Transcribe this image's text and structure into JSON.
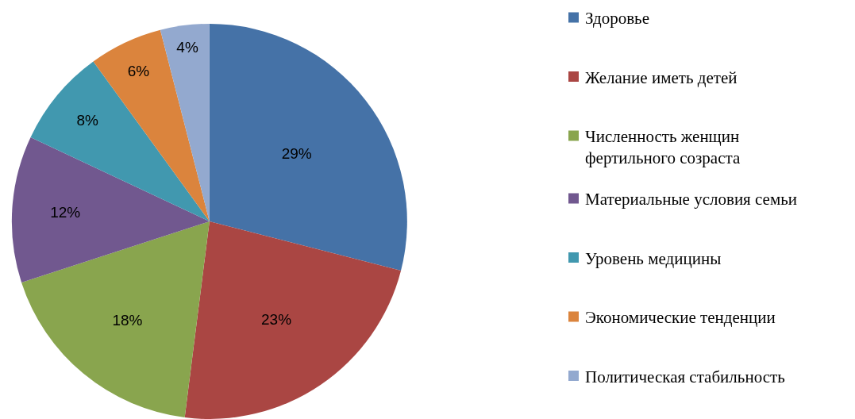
{
  "chart_data": {
    "type": "pie",
    "categories": [
      "Здоровье",
      "Желание иметь детей",
      "Численность женщин\nфертильного созраста",
      "Материальные условия семьи",
      "Уровень медицины",
      "Экономические тенденции",
      "Политическая стабильность"
    ],
    "values": [
      29,
      23,
      18,
      12,
      8,
      6,
      4
    ],
    "colors": [
      "#4572a7",
      "#aa4643",
      "#89a54e",
      "#71588f",
      "#4198af",
      "#db843d",
      "#93a9cf"
    ],
    "value_labels": [
      "29%",
      "23%",
      "18%",
      "12%",
      "8%",
      "6%",
      "4%"
    ],
    "legend": "right"
  }
}
